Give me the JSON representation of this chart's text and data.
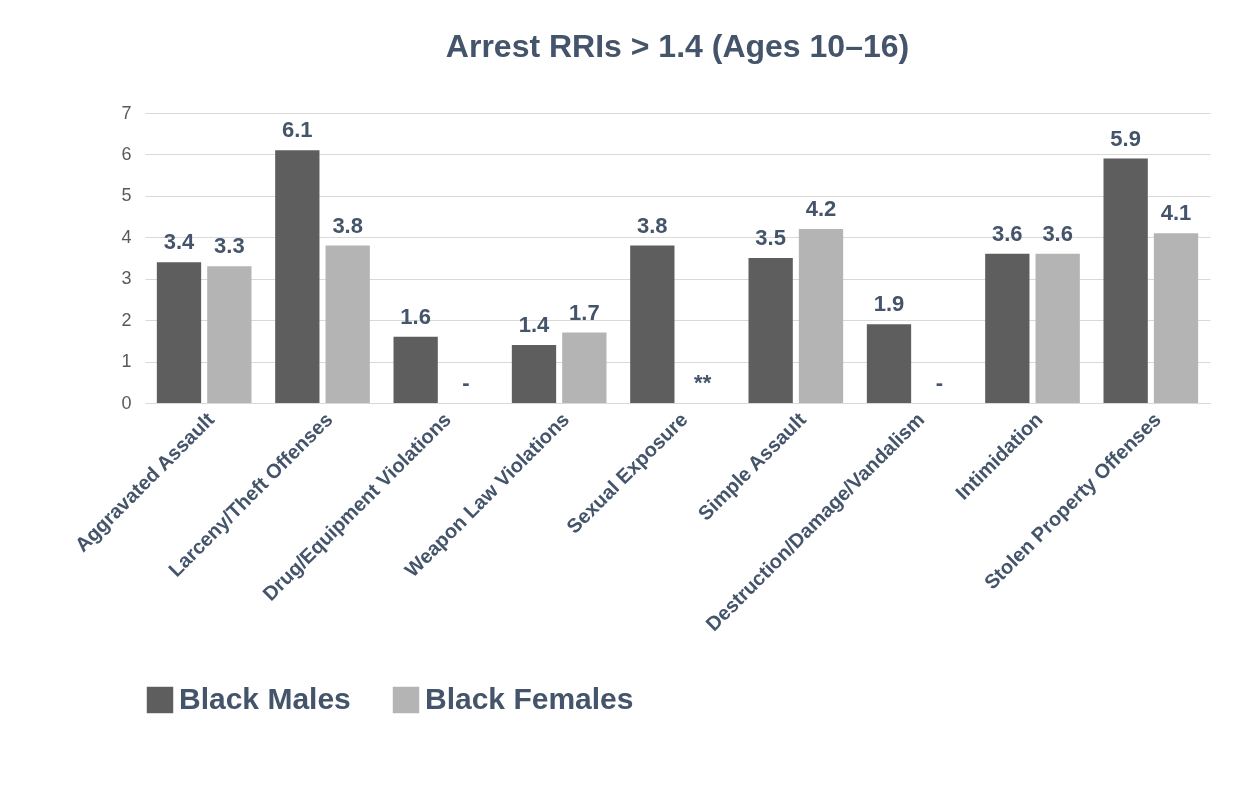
{
  "chart_data": {
    "type": "bar",
    "title": "Arrest RRIs > 1.4 (Ages 10–16)",
    "categories": [
      "Aggravated Assault",
      "Larceny/Theft Offenses",
      "Drug/Equipment Violations",
      "Weapon Law Violations",
      "Sexual Exposure",
      "Simple Assault",
      "Destruction/Damage/Vandalism",
      "Intimidation",
      "Stolen Property Offenses"
    ],
    "series": [
      {
        "name": "Black Males",
        "color": "#5e5e5e",
        "values": [
          3.4,
          6.1,
          1.6,
          1.4,
          3.8,
          3.5,
          1.9,
          3.6,
          5.9
        ],
        "value_labels": [
          "3.4",
          "6.1",
          "1.6",
          "1.4",
          "3.8",
          "3.5",
          "1.9",
          "3.6",
          "5.9"
        ]
      },
      {
        "name": "Black Females",
        "color": "#b4b4b4",
        "values": [
          3.3,
          3.8,
          null,
          1.7,
          null,
          4.2,
          null,
          3.6,
          4.1
        ],
        "value_labels": [
          "3.3",
          "3.8",
          "-",
          "1.7",
          "**",
          "4.2",
          "-",
          "3.6",
          "4.1"
        ]
      }
    ],
    "ylim": [
      0,
      7
    ],
    "yticks": [
      0,
      1,
      2,
      3,
      4,
      5,
      6,
      7
    ],
    "grid": "y",
    "legend": "bottom"
  }
}
